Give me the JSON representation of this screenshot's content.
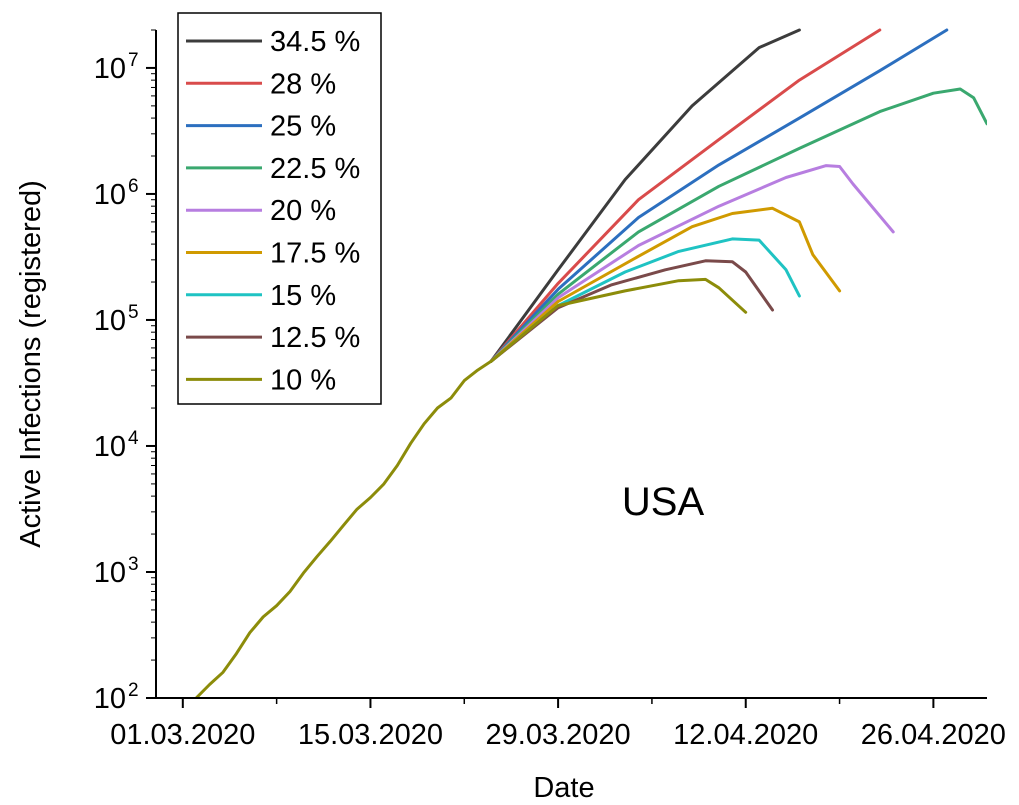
{
  "chart_data": {
    "type": "line",
    "xlabel": "Date",
    "ylabel": "Active Infections (registered)",
    "annotation": "USA",
    "x_ticks": [
      "01.03.2020",
      "15.03.2020",
      "29.03.2020",
      "12.04.2020",
      "26.04.2020"
    ],
    "y_ticks": [
      {
        "base": "10",
        "exp": "2",
        "value": 100
      },
      {
        "base": "10",
        "exp": "3",
        "value": 1000
      },
      {
        "base": "10",
        "exp": "4",
        "value": 10000
      },
      {
        "base": "10",
        "exp": "5",
        "value": 100000
      },
      {
        "base": "10",
        "exp": "6",
        "value": 1000000
      },
      {
        "base": "10",
        "exp": "7",
        "value": 10000000
      }
    ],
    "xlim": [
      "2020-02-28",
      "2020-04-30"
    ],
    "ylim": [
      100,
      20000000
    ],
    "yscale": "log",
    "legend_position": "top-left",
    "shared": {
      "x": [
        "2020-03-02",
        "2020-03-03",
        "2020-03-04",
        "2020-03-05",
        "2020-03-06",
        "2020-03-07",
        "2020-03-08",
        "2020-03-09",
        "2020-03-10",
        "2020-03-11",
        "2020-03-12",
        "2020-03-13",
        "2020-03-14",
        "2020-03-15",
        "2020-03-16",
        "2020-03-17",
        "2020-03-18",
        "2020-03-19",
        "2020-03-20",
        "2020-03-21",
        "2020-03-22",
        "2020-03-23",
        "2020-03-24"
      ],
      "y": [
        100,
        128,
        160,
        225,
        330,
        440,
        540,
        700,
        980,
        1320,
        1750,
        2350,
        3150,
        3900,
        5000,
        7000,
        10500,
        15000,
        20000,
        24000,
        33000,
        40000,
        47000
      ]
    },
    "series": [
      {
        "name": "34.5 %",
        "color": "#3c3c3c",
        "x": [
          "2020-03-24",
          "2020-03-29",
          "2020-04-03",
          "2020-04-08",
          "2020-04-13",
          "2020-04-16"
        ],
        "y": [
          47000,
          250000,
          1300000,
          5000000,
          14500000,
          20000000
        ]
      },
      {
        "name": "28 %",
        "color": "#d94b4b",
        "x": [
          "2020-03-24",
          "2020-03-29",
          "2020-04-04",
          "2020-04-10",
          "2020-04-16",
          "2020-04-22"
        ],
        "y": [
          47000,
          195000,
          900000,
          2700000,
          8000000,
          20000000
        ]
      },
      {
        "name": "25 %",
        "color": "#2c6fbf",
        "x": [
          "2020-03-24",
          "2020-03-29",
          "2020-04-04",
          "2020-04-10",
          "2020-04-16",
          "2020-04-22",
          "2020-04-27"
        ],
        "y": [
          47000,
          175000,
          650000,
          1700000,
          4000000,
          9500000,
          20000000
        ]
      },
      {
        "name": "22.5 %",
        "color": "#3aa86f",
        "x": [
          "2020-03-24",
          "2020-03-29",
          "2020-04-04",
          "2020-04-10",
          "2020-04-16",
          "2020-04-22",
          "2020-04-26",
          "2020-04-28",
          "2020-04-29",
          "2020-04-30"
        ],
        "y": [
          47000,
          160000,
          500000,
          1150000,
          2300000,
          4500000,
          6300000,
          6800000,
          5800000,
          3600000
        ]
      },
      {
        "name": "20 %",
        "color": "#b77ee0",
        "x": [
          "2020-03-24",
          "2020-03-29",
          "2020-04-04",
          "2020-04-10",
          "2020-04-15",
          "2020-04-18",
          "2020-04-19",
          "2020-04-20",
          "2020-04-23"
        ],
        "y": [
          47000,
          150000,
          390000,
          800000,
          1350000,
          1680000,
          1650000,
          1200000,
          500000
        ]
      },
      {
        "name": "17.5 %",
        "color": "#d09a00",
        "x": [
          "2020-03-24",
          "2020-03-29",
          "2020-04-04",
          "2020-04-08",
          "2020-04-11",
          "2020-04-14",
          "2020-04-16",
          "2020-04-17",
          "2020-04-19"
        ],
        "y": [
          47000,
          140000,
          320000,
          550000,
          700000,
          770000,
          600000,
          330000,
          170000
        ]
      },
      {
        "name": "15 %",
        "color": "#1fc3c3",
        "x": [
          "2020-03-24",
          "2020-03-29",
          "2020-04-03",
          "2020-04-07",
          "2020-04-11",
          "2020-04-13",
          "2020-04-15",
          "2020-04-16"
        ],
        "y": [
          47000,
          130000,
          240000,
          350000,
          440000,
          430000,
          250000,
          155000
        ]
      },
      {
        "name": "12.5 %",
        "color": "#7a4a4a",
        "x": [
          "2020-03-24",
          "2020-03-29",
          "2020-04-02",
          "2020-04-06",
          "2020-04-09",
          "2020-04-11",
          "2020-04-12",
          "2020-04-14"
        ],
        "y": [
          47000,
          125000,
          190000,
          250000,
          295000,
          290000,
          240000,
          120000
        ]
      },
      {
        "name": "10 %",
        "color": "#8c8c0a",
        "x": [
          "2020-03-24",
          "2020-03-29",
          "2020-04-03",
          "2020-04-07",
          "2020-04-09",
          "2020-04-10",
          "2020-04-12"
        ],
        "y": [
          47000,
          130000,
          170000,
          205000,
          210000,
          180000,
          115000
        ]
      }
    ]
  }
}
